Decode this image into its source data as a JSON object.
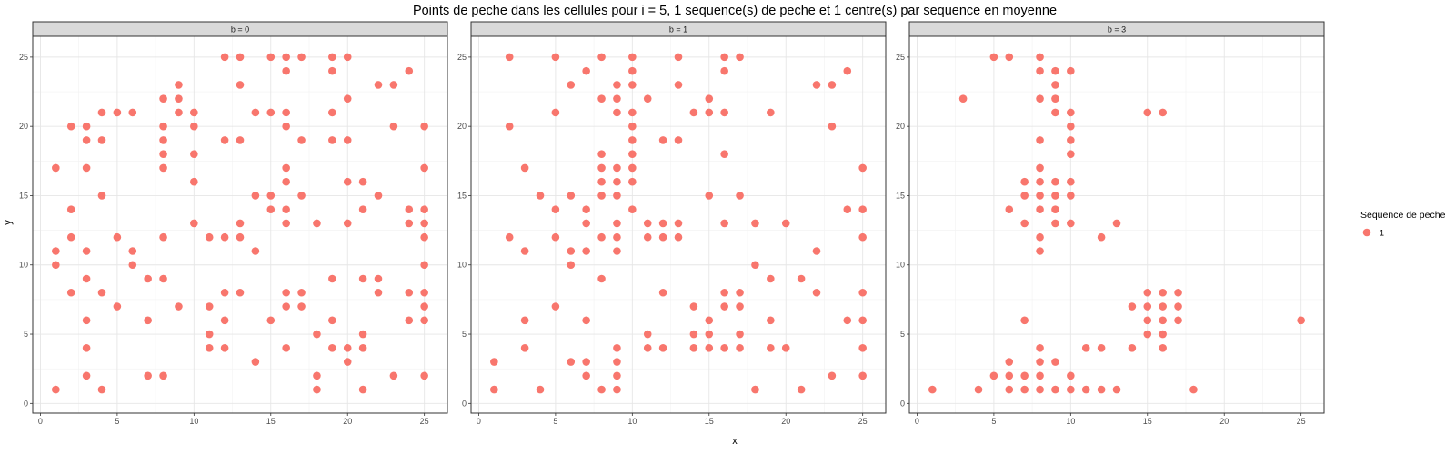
{
  "chart_data": {
    "type": "scatter",
    "title": "Points de peche dans les cellules pour i = 5, 1 sequence(s) de peche et 1 centre(s) par sequence en moyenne",
    "xlabel": "x",
    "ylabel": "y",
    "xlim": [
      -0.5,
      26.5
    ],
    "ylim": [
      -0.7,
      26.5
    ],
    "xticks": [
      0,
      5,
      10,
      15,
      20,
      25
    ],
    "yticks": [
      0,
      5,
      10,
      15,
      20,
      25
    ],
    "grid": true,
    "point_color": "#F8766D",
    "legend": {
      "title": "Sequence de peche",
      "position": "right",
      "entries": [
        {
          "label": "1",
          "color": "#F8766D"
        }
      ]
    },
    "panels": [
      {
        "label": "b = 0",
        "points": [
          [
            12,
            25
          ],
          [
            13,
            25
          ],
          [
            15,
            25
          ],
          [
            16,
            25
          ],
          [
            17,
            25
          ],
          [
            19,
            25
          ],
          [
            20,
            25
          ],
          [
            16,
            24
          ],
          [
            19,
            24
          ],
          [
            24,
            24
          ],
          [
            9,
            23
          ],
          [
            13,
            23
          ],
          [
            22,
            23
          ],
          [
            23,
            23
          ],
          [
            8,
            22
          ],
          [
            9,
            22
          ],
          [
            20,
            22
          ],
          [
            4,
            21
          ],
          [
            5,
            21
          ],
          [
            6,
            21
          ],
          [
            9,
            21
          ],
          [
            10,
            21
          ],
          [
            14,
            21
          ],
          [
            15,
            21
          ],
          [
            16,
            21
          ],
          [
            19,
            21
          ],
          [
            2,
            20
          ],
          [
            3,
            20
          ],
          [
            8,
            20
          ],
          [
            10,
            20
          ],
          [
            16,
            20
          ],
          [
            23,
            20
          ],
          [
            25,
            20
          ],
          [
            3,
            19
          ],
          [
            4,
            19
          ],
          [
            8,
            19
          ],
          [
            12,
            19
          ],
          [
            13,
            19
          ],
          [
            17,
            19
          ],
          [
            19,
            19
          ],
          [
            20,
            19
          ],
          [
            8,
            18
          ],
          [
            10,
            18
          ],
          [
            1,
            17
          ],
          [
            3,
            17
          ],
          [
            8,
            17
          ],
          [
            16,
            17
          ],
          [
            25,
            17
          ],
          [
            10,
            16
          ],
          [
            16,
            16
          ],
          [
            20,
            16
          ],
          [
            21,
            16
          ],
          [
            4,
            15
          ],
          [
            14,
            15
          ],
          [
            15,
            15
          ],
          [
            17,
            15
          ],
          [
            22,
            15
          ],
          [
            2,
            14
          ],
          [
            15,
            14
          ],
          [
            16,
            14
          ],
          [
            21,
            14
          ],
          [
            24,
            14
          ],
          [
            25,
            14
          ],
          [
            10,
            13
          ],
          [
            13,
            13
          ],
          [
            16,
            13
          ],
          [
            18,
            13
          ],
          [
            20,
            13
          ],
          [
            24,
            13
          ],
          [
            25,
            13
          ],
          [
            2,
            12
          ],
          [
            5,
            12
          ],
          [
            8,
            12
          ],
          [
            11,
            12
          ],
          [
            12,
            12
          ],
          [
            13,
            12
          ],
          [
            25,
            12
          ],
          [
            1,
            11
          ],
          [
            3,
            11
          ],
          [
            6,
            11
          ],
          [
            14,
            11
          ],
          [
            1,
            10
          ],
          [
            6,
            10
          ],
          [
            25,
            10
          ],
          [
            3,
            9
          ],
          [
            7,
            9
          ],
          [
            8,
            9
          ],
          [
            19,
            9
          ],
          [
            21,
            9
          ],
          [
            22,
            9
          ],
          [
            2,
            8
          ],
          [
            4,
            8
          ],
          [
            12,
            8
          ],
          [
            13,
            8
          ],
          [
            16,
            8
          ],
          [
            17,
            8
          ],
          [
            22,
            8
          ],
          [
            24,
            8
          ],
          [
            25,
            8
          ],
          [
            5,
            7
          ],
          [
            9,
            7
          ],
          [
            11,
            7
          ],
          [
            16,
            7
          ],
          [
            17,
            7
          ],
          [
            25,
            7
          ],
          [
            3,
            6
          ],
          [
            7,
            6
          ],
          [
            12,
            6
          ],
          [
            15,
            6
          ],
          [
            19,
            6
          ],
          [
            24,
            6
          ],
          [
            25,
            6
          ],
          [
            11,
            5
          ],
          [
            18,
            5
          ],
          [
            21,
            5
          ],
          [
            3,
            4
          ],
          [
            11,
            4
          ],
          [
            12,
            4
          ],
          [
            16,
            4
          ],
          [
            19,
            4
          ],
          [
            20,
            4
          ],
          [
            21,
            4
          ],
          [
            14,
            3
          ],
          [
            20,
            3
          ],
          [
            3,
            2
          ],
          [
            7,
            2
          ],
          [
            8,
            2
          ],
          [
            18,
            2
          ],
          [
            23,
            2
          ],
          [
            25,
            2
          ],
          [
            1,
            1
          ],
          [
            4,
            1
          ],
          [
            18,
            1
          ],
          [
            21,
            1
          ]
        ]
      },
      {
        "label": "b = 1",
        "points": [
          [
            2,
            25
          ],
          [
            5,
            25
          ],
          [
            8,
            25
          ],
          [
            10,
            25
          ],
          [
            13,
            25
          ],
          [
            16,
            25
          ],
          [
            17,
            25
          ],
          [
            7,
            24
          ],
          [
            10,
            24
          ],
          [
            16,
            24
          ],
          [
            24,
            24
          ],
          [
            6,
            23
          ],
          [
            9,
            23
          ],
          [
            10,
            23
          ],
          [
            13,
            23
          ],
          [
            22,
            23
          ],
          [
            23,
            23
          ],
          [
            8,
            22
          ],
          [
            9,
            22
          ],
          [
            11,
            22
          ],
          [
            15,
            22
          ],
          [
            5,
            21
          ],
          [
            9,
            21
          ],
          [
            10,
            21
          ],
          [
            14,
            21
          ],
          [
            15,
            21
          ],
          [
            16,
            21
          ],
          [
            19,
            21
          ],
          [
            2,
            20
          ],
          [
            10,
            20
          ],
          [
            23,
            20
          ],
          [
            10,
            19
          ],
          [
            12,
            19
          ],
          [
            13,
            19
          ],
          [
            8,
            18
          ],
          [
            10,
            18
          ],
          [
            16,
            18
          ],
          [
            3,
            17
          ],
          [
            8,
            17
          ],
          [
            9,
            17
          ],
          [
            10,
            17
          ],
          [
            25,
            17
          ],
          [
            8,
            16
          ],
          [
            9,
            16
          ],
          [
            10,
            16
          ],
          [
            4,
            15
          ],
          [
            6,
            15
          ],
          [
            8,
            15
          ],
          [
            9,
            15
          ],
          [
            15,
            15
          ],
          [
            17,
            15
          ],
          [
            5,
            14
          ],
          [
            7,
            14
          ],
          [
            10,
            14
          ],
          [
            24,
            14
          ],
          [
            25,
            14
          ],
          [
            7,
            13
          ],
          [
            9,
            13
          ],
          [
            11,
            13
          ],
          [
            12,
            13
          ],
          [
            13,
            13
          ],
          [
            16,
            13
          ],
          [
            18,
            13
          ],
          [
            20,
            13
          ],
          [
            2,
            12
          ],
          [
            5,
            12
          ],
          [
            8,
            12
          ],
          [
            9,
            12
          ],
          [
            11,
            12
          ],
          [
            12,
            12
          ],
          [
            13,
            12
          ],
          [
            25,
            12
          ],
          [
            3,
            11
          ],
          [
            6,
            11
          ],
          [
            7,
            11
          ],
          [
            9,
            11
          ],
          [
            22,
            11
          ],
          [
            6,
            10
          ],
          [
            18,
            10
          ],
          [
            8,
            9
          ],
          [
            19,
            9
          ],
          [
            21,
            9
          ],
          [
            12,
            8
          ],
          [
            16,
            8
          ],
          [
            17,
            8
          ],
          [
            22,
            8
          ],
          [
            25,
            8
          ],
          [
            5,
            7
          ],
          [
            14,
            7
          ],
          [
            16,
            7
          ],
          [
            17,
            7
          ],
          [
            3,
            6
          ],
          [
            7,
            6
          ],
          [
            15,
            6
          ],
          [
            19,
            6
          ],
          [
            24,
            6
          ],
          [
            25,
            6
          ],
          [
            11,
            5
          ],
          [
            14,
            5
          ],
          [
            15,
            5
          ],
          [
            17,
            5
          ],
          [
            3,
            4
          ],
          [
            9,
            4
          ],
          [
            11,
            4
          ],
          [
            12,
            4
          ],
          [
            14,
            4
          ],
          [
            15,
            4
          ],
          [
            16,
            4
          ],
          [
            17,
            4
          ],
          [
            19,
            4
          ],
          [
            20,
            4
          ],
          [
            25,
            4
          ],
          [
            1,
            3
          ],
          [
            6,
            3
          ],
          [
            7,
            3
          ],
          [
            9,
            3
          ],
          [
            7,
            2
          ],
          [
            9,
            2
          ],
          [
            23,
            2
          ],
          [
            25,
            2
          ],
          [
            1,
            1
          ],
          [
            4,
            1
          ],
          [
            8,
            1
          ],
          [
            9,
            1
          ],
          [
            18,
            1
          ],
          [
            21,
            1
          ]
        ]
      },
      {
        "label": "b = 3",
        "points": [
          [
            5,
            25
          ],
          [
            6,
            25
          ],
          [
            8,
            25
          ],
          [
            8,
            24
          ],
          [
            9,
            24
          ],
          [
            10,
            24
          ],
          [
            9,
            23
          ],
          [
            3,
            22
          ],
          [
            8,
            22
          ],
          [
            9,
            22
          ],
          [
            9,
            21
          ],
          [
            10,
            21
          ],
          [
            15,
            21
          ],
          [
            16,
            21
          ],
          [
            10,
            20
          ],
          [
            8,
            19
          ],
          [
            10,
            19
          ],
          [
            10,
            18
          ],
          [
            8,
            17
          ],
          [
            7,
            16
          ],
          [
            8,
            16
          ],
          [
            9,
            16
          ],
          [
            10,
            16
          ],
          [
            7,
            15
          ],
          [
            8,
            15
          ],
          [
            9,
            15
          ],
          [
            10,
            15
          ],
          [
            6,
            14
          ],
          [
            8,
            14
          ],
          [
            9,
            14
          ],
          [
            7,
            13
          ],
          [
            9,
            13
          ],
          [
            10,
            13
          ],
          [
            13,
            13
          ],
          [
            8,
            12
          ],
          [
            12,
            12
          ],
          [
            8,
            11
          ],
          [
            15,
            8
          ],
          [
            16,
            8
          ],
          [
            17,
            8
          ],
          [
            14,
            7
          ],
          [
            15,
            7
          ],
          [
            16,
            7
          ],
          [
            17,
            7
          ],
          [
            7,
            6
          ],
          [
            15,
            6
          ],
          [
            16,
            6
          ],
          [
            17,
            6
          ],
          [
            25,
            6
          ],
          [
            15,
            5
          ],
          [
            16,
            5
          ],
          [
            8,
            4
          ],
          [
            11,
            4
          ],
          [
            12,
            4
          ],
          [
            14,
            4
          ],
          [
            16,
            4
          ],
          [
            6,
            3
          ],
          [
            8,
            3
          ],
          [
            9,
            3
          ],
          [
            5,
            2
          ],
          [
            6,
            2
          ],
          [
            7,
            2
          ],
          [
            8,
            2
          ],
          [
            10,
            2
          ],
          [
            1,
            1
          ],
          [
            4,
            1
          ],
          [
            6,
            1
          ],
          [
            7,
            1
          ],
          [
            8,
            1
          ],
          [
            9,
            1
          ],
          [
            10,
            1
          ],
          [
            11,
            1
          ],
          [
            12,
            1
          ],
          [
            13,
            1
          ],
          [
            18,
            1
          ]
        ]
      }
    ]
  }
}
